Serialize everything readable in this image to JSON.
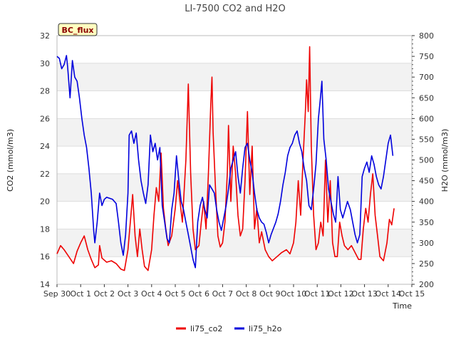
{
  "chart_data": {
    "type": "line",
    "title": "LI-7500 CO2 and H2O",
    "badge": "BC_flux",
    "xlabel": "Time",
    "ylabel_left": "CO2 (mmol/m3)",
    "ylabel_right": "H2O (mmol/m3)",
    "x_ticks": [
      "Sep 30",
      "Oct 1",
      "Oct 2",
      "Oct 3",
      "Oct 4",
      "Oct 5",
      "Oct 6",
      "Oct 7",
      "Oct 8",
      "Oct 9",
      "Oct 10",
      "Oct 11",
      "Oct 12",
      "Oct 13",
      "Oct 14",
      "Oct 15"
    ],
    "x_range_days": [
      0,
      15
    ],
    "ylim_left": [
      14,
      32
    ],
    "yticks_left": [
      14,
      16,
      18,
      20,
      22,
      24,
      26,
      28,
      30,
      32
    ],
    "ylim_right": [
      200,
      800
    ],
    "yticks_right": [
      200,
      250,
      300,
      350,
      400,
      450,
      500,
      550,
      600,
      650,
      700,
      750,
      800
    ],
    "grid": true,
    "legend_position": "bottom",
    "series": [
      {
        "name": "li75_co2",
        "color": "#ee0000",
        "axis": "left",
        "points": [
          [
            0.0,
            16.2
          ],
          [
            0.15,
            16.8
          ],
          [
            0.3,
            16.5
          ],
          [
            0.5,
            16.0
          ],
          [
            0.7,
            15.5
          ],
          [
            0.85,
            16.4
          ],
          [
            1.0,
            17.0
          ],
          [
            1.15,
            17.5
          ],
          [
            1.3,
            16.5
          ],
          [
            1.45,
            15.8
          ],
          [
            1.6,
            15.2
          ],
          [
            1.75,
            15.4
          ],
          [
            1.8,
            16.8
          ],
          [
            1.9,
            15.9
          ],
          [
            2.1,
            15.6
          ],
          [
            2.3,
            15.7
          ],
          [
            2.5,
            15.5
          ],
          [
            2.7,
            15.1
          ],
          [
            2.85,
            15.0
          ],
          [
            3.0,
            16.5
          ],
          [
            3.1,
            18.5
          ],
          [
            3.2,
            20.5
          ],
          [
            3.3,
            17.5
          ],
          [
            3.4,
            16.0
          ],
          [
            3.5,
            18.0
          ],
          [
            3.6,
            16.5
          ],
          [
            3.7,
            15.3
          ],
          [
            3.85,
            15.0
          ],
          [
            4.0,
            16.5
          ],
          [
            4.1,
            19.0
          ],
          [
            4.2,
            21.0
          ],
          [
            4.3,
            20.0
          ],
          [
            4.4,
            23.5
          ],
          [
            4.5,
            19.5
          ],
          [
            4.6,
            18.0
          ],
          [
            4.7,
            16.8
          ],
          [
            4.85,
            17.5
          ],
          [
            5.0,
            19.5
          ],
          [
            5.1,
            21.5
          ],
          [
            5.2,
            20.0
          ],
          [
            5.3,
            18.5
          ],
          [
            5.45,
            23.0
          ],
          [
            5.55,
            28.5
          ],
          [
            5.65,
            22.0
          ],
          [
            5.75,
            18.0
          ],
          [
            5.85,
            16.5
          ],
          [
            6.0,
            16.8
          ],
          [
            6.1,
            18.5
          ],
          [
            6.2,
            20.0
          ],
          [
            6.3,
            18.0
          ],
          [
            6.4,
            22.0
          ],
          [
            6.5,
            27.0
          ],
          [
            6.55,
            29.0
          ],
          [
            6.6,
            25.0
          ],
          [
            6.7,
            21.0
          ],
          [
            6.8,
            17.5
          ],
          [
            6.9,
            16.7
          ],
          [
            7.0,
            17.0
          ],
          [
            7.1,
            18.5
          ],
          [
            7.2,
            22.0
          ],
          [
            7.25,
            25.5
          ],
          [
            7.35,
            20.0
          ],
          [
            7.45,
            24.0
          ],
          [
            7.55,
            22.0
          ],
          [
            7.65,
            19.0
          ],
          [
            7.75,
            17.5
          ],
          [
            7.85,
            18.0
          ],
          [
            7.95,
            21.5
          ],
          [
            8.05,
            26.5
          ],
          [
            8.15,
            20.5
          ],
          [
            8.25,
            24.0
          ],
          [
            8.35,
            18.0
          ],
          [
            8.45,
            19.5
          ],
          [
            8.55,
            17.0
          ],
          [
            8.65,
            17.8
          ],
          [
            8.8,
            16.5
          ],
          [
            8.95,
            16.0
          ],
          [
            9.1,
            15.7
          ],
          [
            9.3,
            16.0
          ],
          [
            9.5,
            16.3
          ],
          [
            9.7,
            16.5
          ],
          [
            9.85,
            16.2
          ],
          [
            10.0,
            17.0
          ],
          [
            10.1,
            18.5
          ],
          [
            10.2,
            21.5
          ],
          [
            10.3,
            19.0
          ],
          [
            10.4,
            23.0
          ],
          [
            10.5,
            26.5
          ],
          [
            10.55,
            28.8
          ],
          [
            10.62,
            26.5
          ],
          [
            10.68,
            31.2
          ],
          [
            10.75,
            24.0
          ],
          [
            10.85,
            19.0
          ],
          [
            10.95,
            16.5
          ],
          [
            11.05,
            17.0
          ],
          [
            11.15,
            18.5
          ],
          [
            11.25,
            17.5
          ],
          [
            11.35,
            23.0
          ],
          [
            11.45,
            18.5
          ],
          [
            11.55,
            21.5
          ],
          [
            11.65,
            17.0
          ],
          [
            11.75,
            16.0
          ],
          [
            11.85,
            16.0
          ],
          [
            11.95,
            18.5
          ],
          [
            12.05,
            17.5
          ],
          [
            12.15,
            16.8
          ],
          [
            12.3,
            16.5
          ],
          [
            12.45,
            16.8
          ],
          [
            12.6,
            16.3
          ],
          [
            12.75,
            15.8
          ],
          [
            12.85,
            15.8
          ],
          [
            12.95,
            18.0
          ],
          [
            13.05,
            19.5
          ],
          [
            13.15,
            18.5
          ],
          [
            13.25,
            20.5
          ],
          [
            13.35,
            22.0
          ],
          [
            13.45,
            19.0
          ],
          [
            13.55,
            17.5
          ],
          [
            13.65,
            16.0
          ],
          [
            13.8,
            15.7
          ],
          [
            13.95,
            17.0
          ],
          [
            14.05,
            18.7
          ],
          [
            14.15,
            18.3
          ],
          [
            14.25,
            19.5
          ]
        ]
      },
      {
        "name": "li75_h2o",
        "color": "#0000dd",
        "axis": "right",
        "points": [
          [
            0.0,
            750
          ],
          [
            0.1,
            745
          ],
          [
            0.2,
            720
          ],
          [
            0.3,
            730
          ],
          [
            0.4,
            752
          ],
          [
            0.45,
            725
          ],
          [
            0.55,
            650
          ],
          [
            0.65,
            740
          ],
          [
            0.75,
            700
          ],
          [
            0.85,
            690
          ],
          [
            0.95,
            650
          ],
          [
            1.05,
            600
          ],
          [
            1.15,
            560
          ],
          [
            1.25,
            530
          ],
          [
            1.35,
            480
          ],
          [
            1.45,
            420
          ],
          [
            1.55,
            330
          ],
          [
            1.6,
            300
          ],
          [
            1.7,
            350
          ],
          [
            1.8,
            420
          ],
          [
            1.9,
            390
          ],
          [
            2.0,
            405
          ],
          [
            2.1,
            410
          ],
          [
            2.2,
            408
          ],
          [
            2.35,
            405
          ],
          [
            2.5,
            395
          ],
          [
            2.6,
            350
          ],
          [
            2.7,
            300
          ],
          [
            2.8,
            270
          ],
          [
            2.9,
            320
          ],
          [
            3.0,
            420
          ],
          [
            3.05,
            560
          ],
          [
            3.15,
            570
          ],
          [
            3.25,
            540
          ],
          [
            3.35,
            565
          ],
          [
            3.45,
            500
          ],
          [
            3.55,
            450
          ],
          [
            3.65,
            420
          ],
          [
            3.75,
            395
          ],
          [
            3.85,
            440
          ],
          [
            3.95,
            560
          ],
          [
            4.05,
            520
          ],
          [
            4.15,
            540
          ],
          [
            4.25,
            500
          ],
          [
            4.35,
            530
          ],
          [
            4.45,
            390
          ],
          [
            4.55,
            350
          ],
          [
            4.65,
            310
          ],
          [
            4.75,
            300
          ],
          [
            4.85,
            380
          ],
          [
            4.95,
            420
          ],
          [
            5.05,
            510
          ],
          [
            5.15,
            450
          ],
          [
            5.25,
            400
          ],
          [
            5.35,
            380
          ],
          [
            5.45,
            350
          ],
          [
            5.55,
            320
          ],
          [
            5.65,
            290
          ],
          [
            5.75,
            260
          ],
          [
            5.85,
            240
          ],
          [
            5.95,
            350
          ],
          [
            6.05,
            390
          ],
          [
            6.15,
            410
          ],
          [
            6.25,
            380
          ],
          [
            6.35,
            360
          ],
          [
            6.45,
            440
          ],
          [
            6.55,
            430
          ],
          [
            6.65,
            420
          ],
          [
            6.75,
            380
          ],
          [
            6.85,
            350
          ],
          [
            6.95,
            330
          ],
          [
            7.05,
            360
          ],
          [
            7.15,
            390
          ],
          [
            7.25,
            430
          ],
          [
            7.35,
            480
          ],
          [
            7.45,
            500
          ],
          [
            7.55,
            520
          ],
          [
            7.65,
            460
          ],
          [
            7.75,
            420
          ],
          [
            7.85,
            480
          ],
          [
            7.95,
            530
          ],
          [
            8.05,
            540
          ],
          [
            8.15,
            500
          ],
          [
            8.25,
            470
          ],
          [
            8.35,
            420
          ],
          [
            8.45,
            380
          ],
          [
            8.55,
            360
          ],
          [
            8.65,
            350
          ],
          [
            8.75,
            345
          ],
          [
            8.85,
            325
          ],
          [
            8.95,
            300
          ],
          [
            9.05,
            320
          ],
          [
            9.15,
            335
          ],
          [
            9.25,
            350
          ],
          [
            9.35,
            370
          ],
          [
            9.45,
            400
          ],
          [
            9.55,
            440
          ],
          [
            9.65,
            470
          ],
          [
            9.75,
            510
          ],
          [
            9.85,
            530
          ],
          [
            9.95,
            540
          ],
          [
            10.05,
            560
          ],
          [
            10.15,
            570
          ],
          [
            10.25,
            540
          ],
          [
            10.35,
            520
          ],
          [
            10.45,
            480
          ],
          [
            10.55,
            450
          ],
          [
            10.65,
            390
          ],
          [
            10.75,
            380
          ],
          [
            10.85,
            430
          ],
          [
            10.95,
            490
          ],
          [
            11.05,
            600
          ],
          [
            11.12,
            640
          ],
          [
            11.2,
            690
          ],
          [
            11.28,
            550
          ],
          [
            11.38,
            500
          ],
          [
            11.48,
            430
          ],
          [
            11.58,
            400
          ],
          [
            11.68,
            370
          ],
          [
            11.78,
            350
          ],
          [
            11.88,
            460
          ],
          [
            11.98,
            380
          ],
          [
            12.08,
            360
          ],
          [
            12.18,
            380
          ],
          [
            12.28,
            400
          ],
          [
            12.4,
            380
          ],
          [
            12.5,
            350
          ],
          [
            12.6,
            320
          ],
          [
            12.7,
            300
          ],
          [
            12.8,
            320
          ],
          [
            12.9,
            460
          ],
          [
            13.0,
            480
          ],
          [
            13.1,
            495
          ],
          [
            13.2,
            470
          ],
          [
            13.3,
            510
          ],
          [
            13.4,
            490
          ],
          [
            13.5,
            460
          ],
          [
            13.6,
            440
          ],
          [
            13.7,
            430
          ],
          [
            13.8,
            460
          ],
          [
            13.9,
            500
          ],
          [
            14.0,
            540
          ],
          [
            14.1,
            560
          ],
          [
            14.2,
            510
          ]
        ]
      }
    ]
  }
}
